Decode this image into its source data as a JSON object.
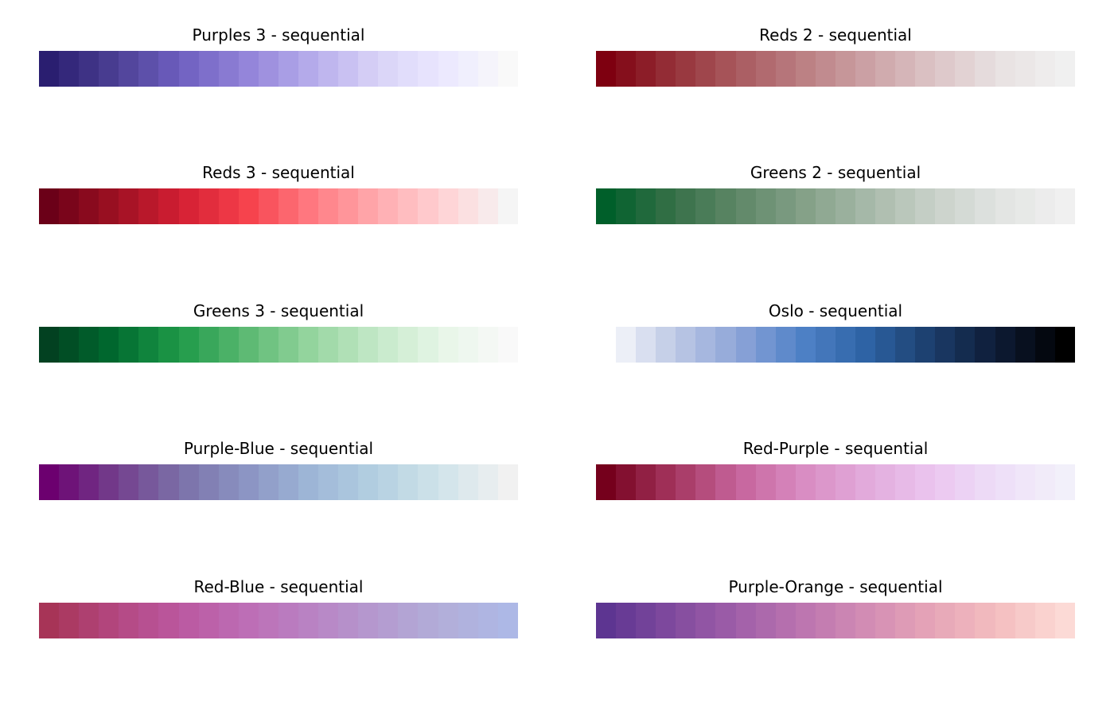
{
  "chart_data": [
    {
      "type": "heatmap",
      "title": "Purples 3 - sequential",
      "palette": "Purples 3",
      "kind": "sequential",
      "colors": [
        "#2a1e70",
        "#4b3f93",
        "#6e5fc0",
        "#9283d9",
        "#b6aceb",
        "#d8d2f7",
        "#ebe8ff",
        "#f9f9f9"
      ]
    },
    {
      "type": "heatmap",
      "title": "Reds 2 - sequential",
      "palette": "Reds 2",
      "kind": "sequential",
      "colors": [
        "#7e0010",
        "#953038",
        "#a95a5f",
        "#bb7f83",
        "#cca2a5",
        "#dcc4c6",
        "#e8e2e2",
        "#f0f0f0"
      ]
    },
    {
      "type": "heatmap",
      "title": "Reds 3 - sequential",
      "palette": "Reds 3",
      "kind": "sequential",
      "colors": [
        "#6b0018",
        "#9c1022",
        "#d31f33",
        "#f6404b",
        "#ff7a81",
        "#ffaaae",
        "#ffd2d4",
        "#f5f5f5"
      ]
    },
    {
      "type": "heatmap",
      "title": "Greens 2 - sequential",
      "palette": "Greens 2",
      "kind": "sequential",
      "colors": [
        "#005f2a",
        "#356f47",
        "#5e8767",
        "#83a087",
        "#a7b9a9",
        "#c8d1c9",
        "#e2e4e2",
        "#f0f0f0"
      ]
    },
    {
      "type": "heatmap",
      "title": "Greens 3 - sequential",
      "palette": "Greens 3",
      "kind": "sequential",
      "colors": [
        "#024121",
        "#006b2f",
        "#1f9a49",
        "#5bb972",
        "#96d59f",
        "#c4e9c8",
        "#e7f6e8",
        "#f9f9f9"
      ]
    },
    {
      "type": "heatmap",
      "title": "Oslo - sequential",
      "palette": "Oslo",
      "kind": "sequential",
      "colors": [
        "#ffffff",
        "#c1cbe6",
        "#8ea5d8",
        "#4e81c7",
        "#2d62a3",
        "#1b3c69",
        "#0d1a33",
        "#000000"
      ]
    },
    {
      "type": "heatmap",
      "title": "Purple-Blue - sequential",
      "palette": "Purple-Blue",
      "kind": "sequential",
      "colors": [
        "#6c006f",
        "#733d8c",
        "#7b70a8",
        "#8b94c3",
        "#9eb6d7",
        "#b4d0e1",
        "#d1e4ea",
        "#f1f1f1"
      ]
    },
    {
      "type": "heatmap",
      "title": "Red-Purple - sequential",
      "palette": "Red-Purple",
      "kind": "sequential",
      "colors": [
        "#75001c",
        "#a3345d",
        "#c5639b",
        "#d98cc2",
        "#e2abdc",
        "#ebc6f0",
        "#eedff8",
        "#f2f0fa"
      ]
    },
    {
      "type": "heatmap",
      "title": "Red-Blue - sequential",
      "palette": "Red-Blue",
      "kind": "sequential",
      "colors": [
        "#a73457",
        "#b34780",
        "#bb58a0",
        "#bd6db5",
        "#b983c4",
        "#b49acf",
        "#b2aed9",
        "#adb8e6"
      ]
    },
    {
      "type": "heatmap",
      "title": "Purple-Orange - sequential",
      "palette": "Purple-Orange",
      "kind": "sequential",
      "colors": [
        "#5d3591",
        "#804a9e",
        "#a05fa9",
        "#bc75b0",
        "#d38db4",
        "#e6a5b8",
        "#f4bfc0",
        "#fcdad6"
      ]
    }
  ]
}
